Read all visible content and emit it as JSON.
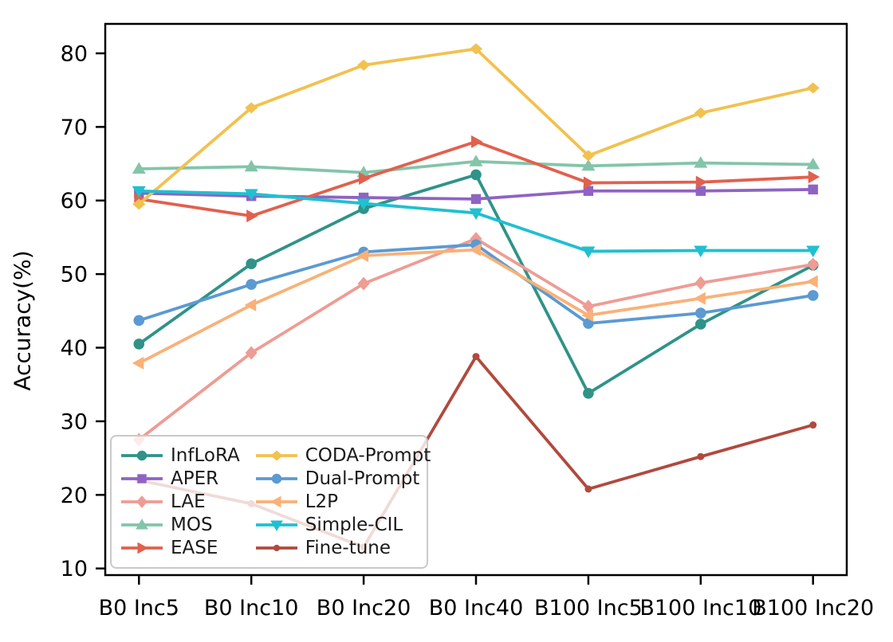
{
  "chart_data": {
    "type": "line",
    "title": "",
    "xlabel": "",
    "ylabel": "Accuracy(%)",
    "categories": [
      "B0 Inc5",
      "B0 Inc10",
      "B0 Inc20",
      "B0 Inc40",
      "B100 Inc5",
      "B100 Inc10",
      "B100 Inc20"
    ],
    "y_ticks": [
      10,
      20,
      30,
      40,
      50,
      60,
      70,
      80
    ],
    "ylim": [
      9.1,
      84.0
    ],
    "xlim": [
      -0.3,
      6.3
    ],
    "grid": false,
    "background": "#ffffff",
    "spine_color": "#000000",
    "tick_color": "#000000",
    "series": [
      {
        "name": "InfLoRA",
        "color": "#2f9388",
        "marker": "circle",
        "values": [
          40.5,
          51.4,
          58.9,
          63.5,
          33.8,
          43.2,
          51.2
        ]
      },
      {
        "name": "APER",
        "color": "#8f63c3",
        "marker": "square",
        "values": [
          61.0,
          60.6,
          60.4,
          60.2,
          61.3,
          61.3,
          61.5
        ]
      },
      {
        "name": "LAE",
        "color": "#ee9c94",
        "marker": "diamond",
        "values": [
          27.5,
          39.3,
          48.7,
          54.8,
          45.6,
          48.8,
          51.3
        ]
      },
      {
        "name": "MOS",
        "color": "#83c5a9",
        "marker": "triangle-up",
        "values": [
          64.3,
          64.6,
          63.8,
          65.3,
          64.7,
          65.1,
          64.9
        ]
      },
      {
        "name": "EASE",
        "color": "#e2604e",
        "marker": "triangle-right",
        "values": [
          60.2,
          57.9,
          63.0,
          68.0,
          62.4,
          62.5,
          63.2
        ]
      },
      {
        "name": "CODA-Prompt",
        "color": "#f2c14e",
        "marker": "diamond-wide",
        "values": [
          59.5,
          72.6,
          78.4,
          80.6,
          66.1,
          71.9,
          75.3
        ]
      },
      {
        "name": "Dual-Prompt",
        "color": "#5b9ad2",
        "marker": "circle",
        "values": [
          43.7,
          48.6,
          53.0,
          54.0,
          43.3,
          44.7,
          47.1
        ]
      },
      {
        "name": "L2P",
        "color": "#f9b177",
        "marker": "triangle-left",
        "values": [
          37.9,
          45.8,
          52.5,
          53.3,
          44.4,
          46.7,
          49.0
        ]
      },
      {
        "name": "Simple-CIL",
        "color": "#1fc0d0",
        "marker": "triangle-down",
        "values": [
          61.3,
          60.9,
          59.6,
          58.3,
          53.1,
          53.2,
          53.2
        ]
      },
      {
        "name": "Fine-tune",
        "color": "#b04a3e",
        "marker": "dot",
        "values": [
          22.0,
          18.8,
          12.9,
          38.8,
          20.8,
          25.2,
          29.5
        ]
      }
    ],
    "legend": {
      "position": "lower-left",
      "columns": 2,
      "border_color": "#c9c9c9",
      "column_order": [
        [
          "InfLoRA",
          "APER",
          "LAE",
          "MOS",
          "EASE"
        ],
        [
          "CODA-Prompt",
          "Dual-Prompt",
          "L2P",
          "Simple-CIL",
          "Fine-tune"
        ]
      ]
    }
  }
}
